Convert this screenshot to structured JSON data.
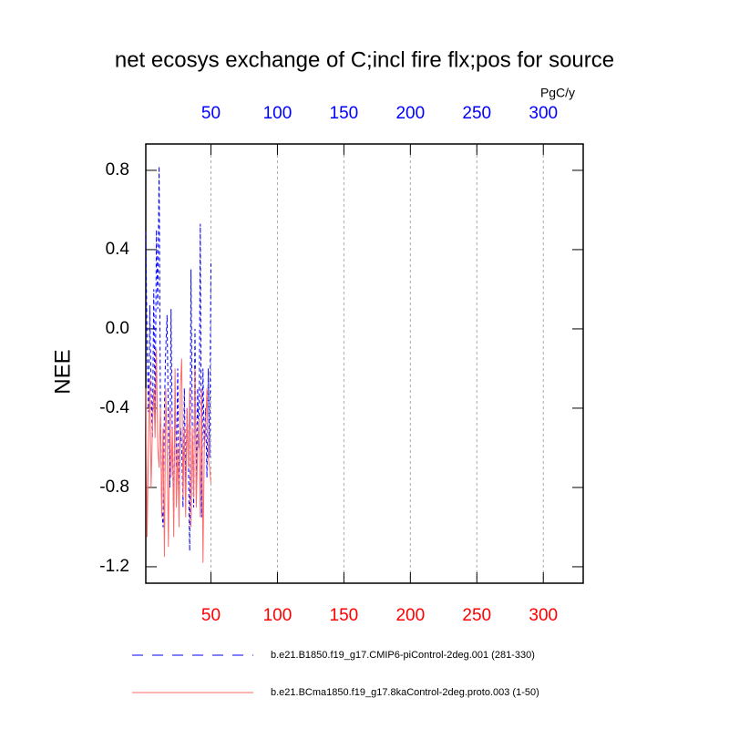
{
  "chart_data": {
    "type": "line",
    "title": "net ecosys exchange of C;incl fire flx;pos for source",
    "y_label": "NEE",
    "units": "PgC/y",
    "x": [
      1,
      2,
      3,
      4,
      5,
      6,
      7,
      8,
      9,
      10,
      11,
      12,
      13,
      14,
      15,
      16,
      17,
      18,
      19,
      20,
      21,
      22,
      23,
      24,
      25,
      26,
      27,
      28,
      29,
      30,
      31,
      32,
      33,
      34,
      35,
      36,
      37,
      38,
      39,
      40,
      41,
      42,
      43,
      44,
      45,
      46,
      47,
      48,
      49,
      50
    ],
    "series": [
      {
        "name": "b.e21.B1850.f19_g17.CMIP6-piControl-2deg.001 (281-330)",
        "color": "#0000ff",
        "dashed": true,
        "values": [
          0.49,
          -0.1,
          -0.42,
          0.12,
          -0.3,
          -0.55,
          0.2,
          -0.45,
          0.5,
          0.1,
          0.82,
          -0.4,
          -0.9,
          -1.0,
          -0.4,
          -0.1,
          0.07,
          -0.5,
          -0.8,
          0.1,
          -0.6,
          -0.95,
          -0.3,
          -0.7,
          -0.2,
          -0.9,
          -0.5,
          -0.6,
          -0.9,
          -0.3,
          -0.8,
          -0.4,
          -0.65,
          -1.12,
          0.3,
          -0.5,
          -0.9,
          0.0,
          -0.8,
          -0.3,
          -0.6,
          0.53,
          -0.95,
          -0.2,
          -0.6,
          -0.4,
          -0.75,
          -0.2,
          -0.65,
          0.33
        ]
      },
      {
        "name": "b.e21.BCma1850.f19_g17.8kaControl-2deg.proto.003 (1-50)",
        "color": "#ff6a6a",
        "dashed": false,
        "values": [
          -0.3,
          -1.05,
          -0.6,
          -0.25,
          -0.8,
          -0.5,
          -0.3,
          -0.55,
          -0.1,
          -0.6,
          -0.7,
          -0.4,
          -0.95,
          -0.5,
          -1.15,
          -0.3,
          -0.6,
          -1.1,
          -0.4,
          -0.75,
          -0.5,
          -1.05,
          -0.2,
          -0.9,
          -0.6,
          -1.0,
          -0.3,
          -0.15,
          -0.85,
          -0.5,
          -0.95,
          -0.4,
          -0.7,
          -0.3,
          -1.0,
          -0.5,
          -0.85,
          -0.2,
          -0.9,
          -0.6,
          -0.45,
          -0.95,
          -0.3,
          -1.18,
          -0.6,
          -0.5,
          -0.3,
          -0.65,
          -0.7,
          -0.78
        ]
      }
    ],
    "xlim": [
      1,
      330
    ],
    "xticks": [
      50,
      100,
      150,
      200,
      250,
      300
    ],
    "ylim": [
      -1.283,
      0.933
    ],
    "yticks": [
      0.8,
      0.4,
      {
        "value": 0,
        "label": "0.0"
      },
      -0.4,
      -0.8,
      -1.2
    ],
    "top_axis_color": "#0000ff",
    "bottom_axis_color": "#ff0000",
    "grid": true
  }
}
